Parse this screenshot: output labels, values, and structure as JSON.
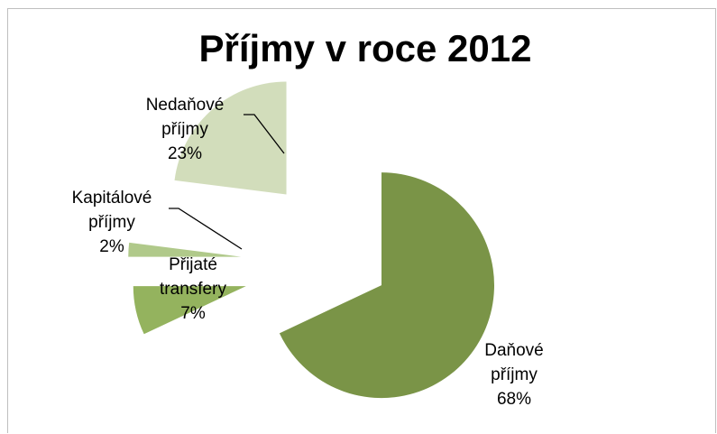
{
  "chart_data": {
    "type": "pie",
    "title": "Příjmy v roce 2012",
    "slices": [
      {
        "name": "Daňové příjmy",
        "line1": "Daňové",
        "line2": "příjmy",
        "percent_label": "68%",
        "value": 68,
        "color": "#7a9447"
      },
      {
        "name": "Přijaté transfery",
        "line1": "Přijaté",
        "line2": "transfery",
        "percent_label": "7%",
        "value": 7,
        "color": "#94b35e"
      },
      {
        "name": "Kapitálové příjmy",
        "line1": "Kapitálové",
        "line2": "příjmy",
        "percent_label": "2%",
        "value": 2,
        "color": "#b0c98a"
      },
      {
        "name": "Nedaňové příjmy",
        "line1": "Nedaňové",
        "line2": "příjmy",
        "percent_label": "23%",
        "value": 23,
        "color": "#d2ddbb"
      }
    ],
    "start_angle_deg": 0,
    "direction": "clockwise",
    "exploded": true,
    "legend": "none",
    "data_labels": "category name and percentage"
  }
}
